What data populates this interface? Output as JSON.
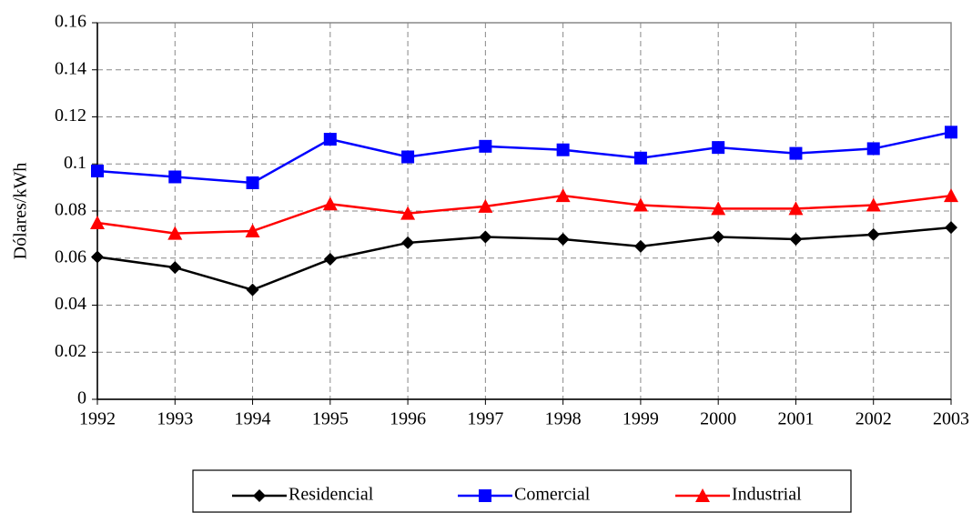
{
  "chart_data": {
    "type": "line",
    "y_label": "Dólares/kWh",
    "x": [
      1992,
      1993,
      1994,
      1995,
      1996,
      1997,
      1998,
      1999,
      2000,
      2001,
      2002,
      2003
    ],
    "xlim": [
      1992,
      2003
    ],
    "xticks": [
      1992,
      1993,
      1994,
      1995,
      1996,
      1997,
      1998,
      1999,
      2000,
      2001,
      2002,
      2003
    ],
    "ylim": [
      0,
      0.16
    ],
    "yticks": [
      0,
      0.02,
      0.04,
      0.06,
      0.08,
      0.1,
      0.12,
      0.14,
      0.16
    ],
    "grid": true,
    "legend": "bottom",
    "series": [
      {
        "name": "Residencial",
        "color": "#000000",
        "marker": "diamond",
        "values": [
          0.0605,
          0.056,
          0.0465,
          0.0595,
          0.0665,
          0.069,
          0.068,
          0.065,
          0.069,
          0.068,
          0.07,
          0.073
        ]
      },
      {
        "name": "Comercial",
        "color": "#0000ff",
        "marker": "square",
        "values": [
          0.097,
          0.0945,
          0.092,
          0.1105,
          0.103,
          0.1075,
          0.106,
          0.1025,
          0.107,
          0.1045,
          0.1065,
          0.1135
        ]
      },
      {
        "name": "Industrial",
        "color": "#ff0000",
        "marker": "triangle",
        "values": [
          0.075,
          0.0705,
          0.0715,
          0.083,
          0.079,
          0.082,
          0.0865,
          0.0825,
          0.081,
          0.081,
          0.0825,
          0.0865
        ]
      }
    ]
  }
}
